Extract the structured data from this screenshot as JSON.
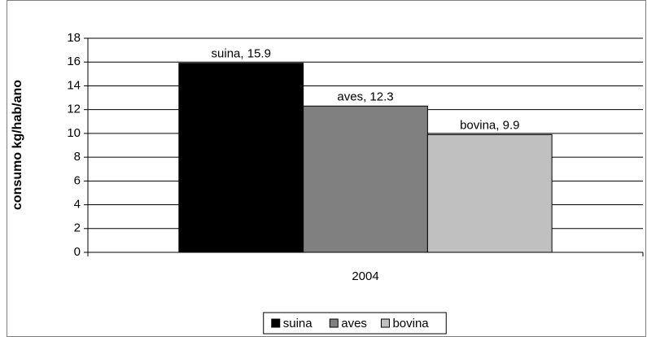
{
  "chart_data": {
    "type": "bar",
    "y_label": "consumo kg/hab/ano",
    "categories": [
      "2004"
    ],
    "series": [
      {
        "name": "suina",
        "color": "#000000",
        "values": [
          15.9
        ],
        "value_labels": [
          "suina, 15.9"
        ]
      },
      {
        "name": "aves",
        "color": "#808080",
        "values": [
          12.3
        ],
        "value_labels": [
          "aves, 12.3"
        ]
      },
      {
        "name": "bovina",
        "color": "#c0c0c0",
        "values": [
          9.9
        ],
        "value_labels": [
          "bovina, 9.9"
        ]
      }
    ],
    "ylim": [
      0,
      18
    ],
    "yticks": [
      0,
      2,
      4,
      6,
      8,
      10,
      12,
      14,
      16,
      18
    ],
    "grid": true,
    "legend": "bottom"
  }
}
